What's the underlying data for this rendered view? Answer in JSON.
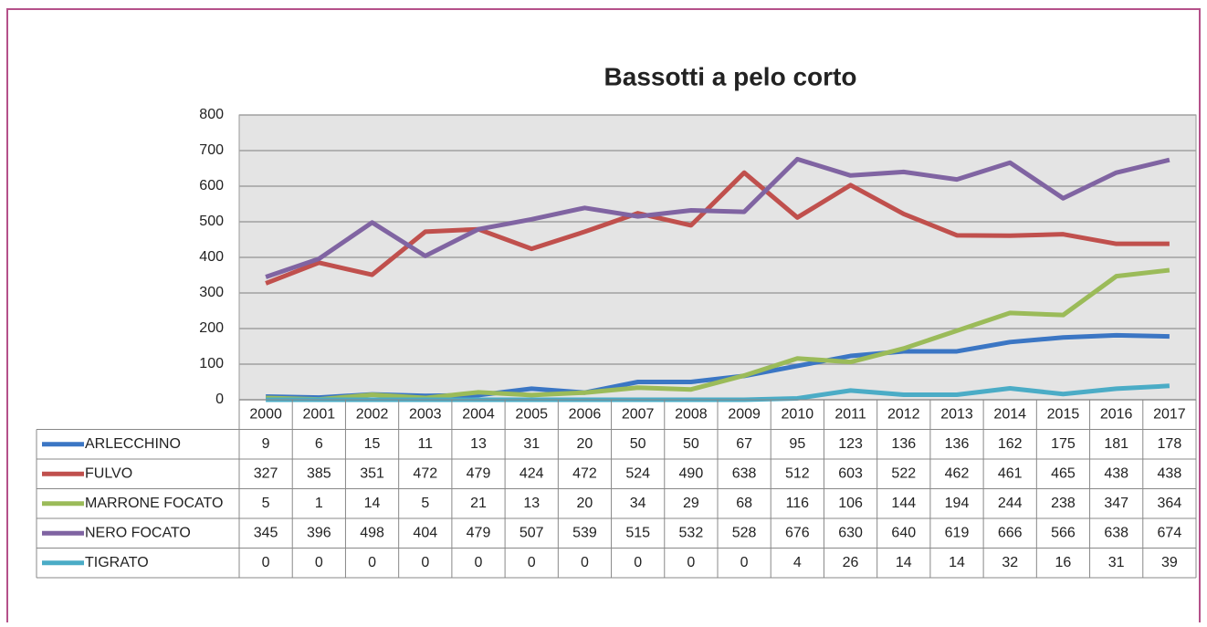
{
  "chart_data": {
    "type": "line",
    "title": "Bassotti a pelo corto",
    "categories": [
      "2000",
      "2001",
      "2002",
      "2003",
      "2004",
      "2005",
      "2006",
      "2007",
      "2008",
      "2009",
      "2010",
      "2011",
      "2012",
      "2013",
      "2014",
      "2015",
      "2016",
      "2017"
    ],
    "series": [
      {
        "name": "ARLECCHINO",
        "color": "#3b76c4",
        "values": [
          9,
          6,
          15,
          11,
          13,
          31,
          20,
          50,
          50,
          67,
          95,
          123,
          136,
          136,
          162,
          175,
          181,
          178
        ]
      },
      {
        "name": "FULVO",
        "color": "#c0504d",
        "values": [
          327,
          385,
          351,
          472,
          479,
          424,
          472,
          524,
          490,
          638,
          512,
          603,
          522,
          462,
          461,
          465,
          438,
          438
        ]
      },
      {
        "name": "MARRONE FOCATO",
        "color": "#9bbb59",
        "values": [
          5,
          1,
          14,
          5,
          21,
          13,
          20,
          34,
          29,
          68,
          116,
          106,
          144,
          194,
          244,
          238,
          347,
          364
        ]
      },
      {
        "name": "NERO FOCATO",
        "color": "#8064a2",
        "values": [
          345,
          396,
          498,
          404,
          479,
          507,
          539,
          515,
          532,
          528,
          676,
          630,
          640,
          619,
          666,
          566,
          638,
          674
        ]
      },
      {
        "name": "TIGRATO",
        "color": "#4bacc6",
        "values": [
          0,
          0,
          0,
          0,
          0,
          0,
          0,
          0,
          0,
          0,
          4,
          26,
          14,
          14,
          32,
          16,
          31,
          39
        ]
      }
    ],
    "ylim": [
      0,
      800
    ],
    "yticks": [
      0,
      100,
      200,
      300,
      400,
      500,
      600,
      700,
      800
    ],
    "grid": true
  }
}
